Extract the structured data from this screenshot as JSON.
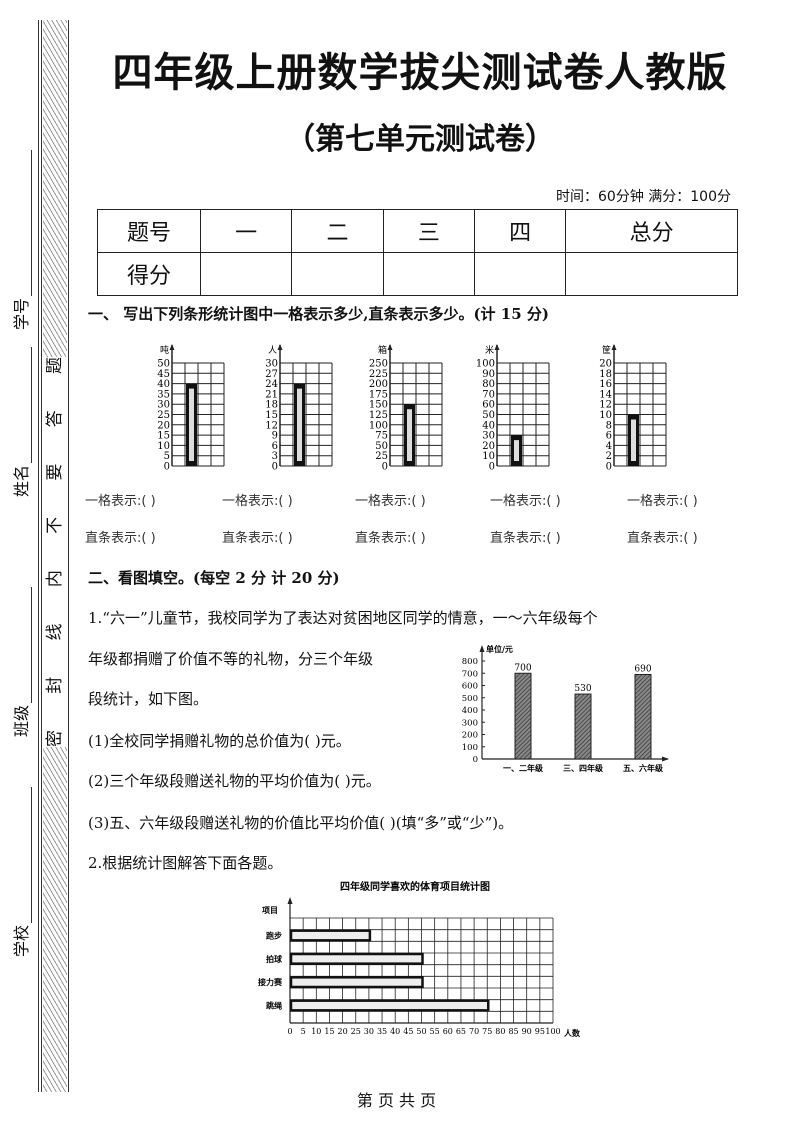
{
  "margin": {
    "seal_text": [
      "密",
      "封",
      "线",
      "内",
      "不",
      "要",
      "答",
      "题"
    ],
    "fields": [
      "学号",
      "姓名",
      "班级",
      "学校"
    ]
  },
  "header": {
    "title": "四年级上册数学拔尖测试卷人教版",
    "subtitle": "（第七单元测试卷）",
    "meta": "时间：60分钟  满分：100分"
  },
  "score_table": {
    "row1": [
      "题号",
      "一",
      "二",
      "三",
      "四",
      "总分"
    ],
    "row2": [
      "得分",
      "",
      "",
      "",
      "",
      ""
    ]
  },
  "section1": {
    "heading": "一、  写出下列条形统计图中一格表示多少,直条表示多少。(计 15 分)",
    "cell_label": "一格表示:(    )",
    "bar_label": "直条表示:(    )"
  },
  "section2": {
    "heading": "二、看图填空。(每空 2 分   计 20 分)",
    "q1_line1": "1.“六一”儿童节，我校同学为了表达对贫困地区同学的情意，一～六年级每个",
    "q1_line2": "年级都捐赠了价值不等的礼物，分三个年级",
    "q1_line3": "段统计，如下图。",
    "q1_a": "(1)全校同学捐赠礼物的总价值为(        )元。",
    "q1_b": "(2)三个年级段赠送礼物的平均价值为(          )元。",
    "q1_c": "(3)五、六年级段赠送礼物的价值比平均价值(        )(填“多”或“少”)。",
    "q2": "2.根据统计图解答下面各题。"
  },
  "chart_data": [
    {
      "type": "bar",
      "ylabel": "吨",
      "ylim": [
        0,
        50
      ],
      "yticks": [
        0,
        5,
        10,
        15,
        20,
        25,
        30,
        35,
        40,
        45,
        50
      ],
      "values": [
        40
      ]
    },
    {
      "type": "bar",
      "ylabel": "人",
      "ylim": [
        0,
        30
      ],
      "yticks": [
        0,
        3,
        6,
        9,
        12,
        15,
        18,
        21,
        24,
        27,
        30
      ],
      "values": [
        24
      ]
    },
    {
      "type": "bar",
      "ylabel": "箱",
      "ylim": [
        0,
        250
      ],
      "yticks": [
        0,
        25,
        50,
        75,
        100,
        125,
        150,
        175,
        200,
        225,
        250
      ],
      "values": [
        150
      ]
    },
    {
      "type": "bar",
      "ylabel": "米",
      "ylim": [
        0,
        100
      ],
      "yticks": [
        0,
        10,
        20,
        30,
        40,
        50,
        60,
        70,
        80,
        90,
        100
      ],
      "values": [
        30
      ]
    },
    {
      "type": "bar",
      "ylabel": "筐",
      "ylim": [
        0,
        20
      ],
      "yticks": [
        0,
        2,
        4,
        6,
        8,
        10,
        12,
        14,
        16,
        18,
        20
      ],
      "values": [
        10
      ]
    },
    {
      "type": "bar",
      "ylabel": "单位/元",
      "ylim": [
        0,
        800
      ],
      "yticks": [
        0,
        100,
        200,
        300,
        400,
        500,
        600,
        700,
        800
      ],
      "categories": [
        "一、二年级",
        "三、四年级",
        "五、六年级"
      ],
      "values": [
        700,
        530,
        690
      ],
      "data_labels": [
        "700",
        "530",
        "690"
      ]
    },
    {
      "type": "bar",
      "orientation": "horizontal",
      "title": "四年级同学喜欢的体育项目统计图",
      "ylabel": "项目",
      "xlabel": "人数",
      "xlim": [
        0,
        100
      ],
      "xticks": [
        0,
        5,
        10,
        15,
        20,
        25,
        30,
        35,
        40,
        45,
        50,
        55,
        60,
        65,
        70,
        75,
        80,
        85,
        90,
        95,
        100
      ],
      "categories": [
        "跑步",
        "拍球",
        "接力赛",
        "跳绳"
      ],
      "values": [
        30,
        50,
        50,
        75
      ]
    }
  ],
  "footer": {
    "page": "第  页  共  页"
  }
}
